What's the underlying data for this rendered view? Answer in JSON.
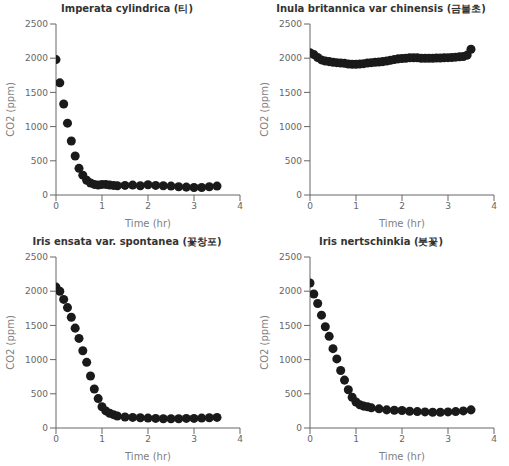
{
  "chart_data": [
    {
      "type": "scatter",
      "title": "Imperata cylindrica (티)",
      "xlabel": "Time (hr)",
      "ylabel": "CO2 (ppm)",
      "xlim": [
        0,
        4
      ],
      "ylim": [
        0,
        2500
      ],
      "xticks": [
        0,
        1,
        2,
        3,
        4
      ],
      "yticks": [
        0,
        500,
        1000,
        1500,
        2000,
        2500
      ],
      "grid": false,
      "color": "#1a1a1a",
      "marker": "o",
      "x": [
        0.0,
        0.083,
        0.167,
        0.25,
        0.333,
        0.417,
        0.5,
        0.583,
        0.667,
        0.75,
        0.833,
        0.917,
        1.0,
        1.083,
        1.167,
        1.25,
        1.333,
        1.5,
        1.667,
        1.833,
        2.0,
        2.167,
        2.333,
        2.5,
        2.667,
        2.833,
        3.0,
        3.167,
        3.333,
        3.5
      ],
      "values": [
        1980,
        1640,
        1330,
        1050,
        790,
        570,
        390,
        290,
        215,
        175,
        155,
        145,
        155,
        155,
        145,
        140,
        135,
        140,
        145,
        135,
        150,
        140,
        135,
        130,
        120,
        115,
        110,
        110,
        120,
        130
      ]
    },
    {
      "type": "scatter",
      "title": "Inula britannica var chinensis (금불초)",
      "xlabel": "Time (hr)",
      "ylabel": "CO2 (ppm)",
      "xlim": [
        0,
        4
      ],
      "ylim": [
        0,
        2500
      ],
      "xticks": [
        0,
        1,
        2,
        3,
        4
      ],
      "yticks": [
        0,
        500,
        1000,
        1500,
        2000,
        2500
      ],
      "grid": false,
      "color": "#1a1a1a",
      "marker": "o",
      "x": [
        0.0,
        0.083,
        0.167,
        0.25,
        0.333,
        0.417,
        0.5,
        0.583,
        0.667,
        0.75,
        0.833,
        0.917,
        1.0,
        1.083,
        1.167,
        1.25,
        1.333,
        1.417,
        1.5,
        1.583,
        1.667,
        1.75,
        1.833,
        1.917,
        2.0,
        2.083,
        2.167,
        2.25,
        2.333,
        2.417,
        2.5,
        2.583,
        2.667,
        2.75,
        2.833,
        2.917,
        3.0,
        3.083,
        3.167,
        3.25,
        3.333,
        3.417,
        3.5
      ],
      "values": [
        2080,
        2055,
        2010,
        1975,
        1960,
        1950,
        1940,
        1935,
        1930,
        1925,
        1915,
        1910,
        1910,
        1915,
        1920,
        1930,
        1935,
        1940,
        1945,
        1950,
        1960,
        1970,
        1980,
        1990,
        1995,
        2000,
        2005,
        2005,
        2005,
        2000,
        2000,
        2000,
        2000,
        2002,
        2003,
        2005,
        2008,
        2010,
        2015,
        2020,
        2025,
        2045,
        2130
      ]
    },
    {
      "type": "scatter",
      "title": "Iris ensata var. spontanea (꽃창포)",
      "xlabel": "Time (hr)",
      "ylabel": "CO2 (ppm)",
      "xlim": [
        0,
        4
      ],
      "ylim": [
        0,
        2500
      ],
      "xticks": [
        0,
        1,
        2,
        3,
        4
      ],
      "yticks": [
        0,
        500,
        1000,
        1500,
        2000,
        2500
      ],
      "grid": false,
      "color": "#1a1a1a",
      "marker": "o",
      "x": [
        0.0,
        0.083,
        0.167,
        0.25,
        0.333,
        0.417,
        0.5,
        0.583,
        0.667,
        0.75,
        0.833,
        0.917,
        1.0,
        1.083,
        1.167,
        1.25,
        1.333,
        1.5,
        1.667,
        1.833,
        2.0,
        2.167,
        2.333,
        2.5,
        2.667,
        2.833,
        3.0,
        3.167,
        3.333,
        3.5
      ],
      "values": [
        2060,
        2000,
        1880,
        1760,
        1620,
        1460,
        1310,
        1130,
        960,
        760,
        570,
        430,
        310,
        250,
        215,
        195,
        175,
        160,
        155,
        150,
        145,
        140,
        135,
        135,
        135,
        140,
        140,
        145,
        150,
        155
      ]
    },
    {
      "type": "scatter",
      "title": "Iris nertschinkia (붓꽃)",
      "xlabel": "Time (hr)",
      "ylabel": "CO2 (ppm)",
      "xlim": [
        0,
        4
      ],
      "ylim": [
        0,
        2500
      ],
      "xticks": [
        0,
        1,
        2,
        3,
        4
      ],
      "yticks": [
        0,
        500,
        1000,
        1500,
        2000,
        2500
      ],
      "grid": false,
      "color": "#1a1a1a",
      "marker": "o",
      "x": [
        0.0,
        0.083,
        0.167,
        0.25,
        0.333,
        0.417,
        0.5,
        0.583,
        0.667,
        0.75,
        0.833,
        0.917,
        1.0,
        1.083,
        1.167,
        1.25,
        1.333,
        1.5,
        1.667,
        1.833,
        2.0,
        2.167,
        2.333,
        2.5,
        2.667,
        2.833,
        3.0,
        3.167,
        3.333,
        3.5
      ],
      "values": [
        2120,
        1960,
        1820,
        1650,
        1480,
        1340,
        1160,
        1010,
        840,
        700,
        560,
        450,
        380,
        340,
        320,
        310,
        295,
        280,
        265,
        260,
        255,
        245,
        240,
        235,
        230,
        230,
        235,
        240,
        250,
        265
      ]
    }
  ]
}
